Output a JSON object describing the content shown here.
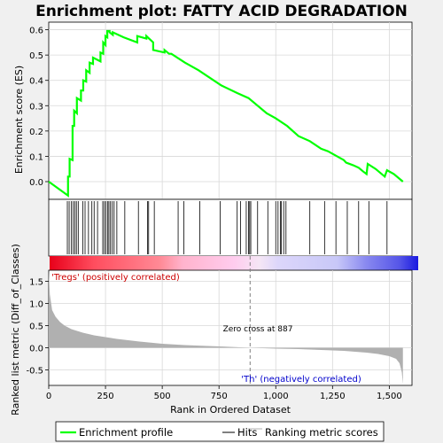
{
  "chart_data": {
    "type": "line",
    "title": "Enrichment plot: FATTY ACID DEGRADATION",
    "colors": {
      "es_line": "#00ff00",
      "hit": "#000000",
      "metric_fill": "#b0b0b0",
      "zero_cross": "#808080",
      "positive_label": "#cc0000",
      "negative_label": "#0000cc"
    },
    "es_panel": {
      "ylabel": "Enrichment score (ES)",
      "ylim": [
        -0.07,
        0.63
      ],
      "yticks": [
        0.0,
        0.1,
        0.2,
        0.3,
        0.4,
        0.5,
        0.6
      ],
      "ytick_labels": [
        "0.0",
        "0.1",
        "0.2",
        "0.3",
        "0.4",
        "0.5",
        "0.6"
      ],
      "grid": true,
      "x": [
        0,
        85,
        85,
        92,
        92,
        105,
        105,
        112,
        112,
        124,
        124,
        142,
        142,
        152,
        152,
        165,
        165,
        180,
        180,
        195,
        195,
        228,
        228,
        240,
        240,
        250,
        250,
        258,
        258,
        268,
        268,
        282,
        282,
        330,
        330,
        390,
        390,
        430,
        430,
        460,
        460,
        510,
        510,
        530,
        540,
        600,
        660,
        760,
        830,
        880,
        960,
        1000,
        1050,
        1100,
        1150,
        1200,
        1230,
        1270,
        1300,
        1310,
        1340,
        1365,
        1385,
        1400,
        1405,
        1440,
        1480,
        1490,
        1520,
        1560
      ],
      "es": [
        0.0,
        -0.055,
        0.02,
        0.02,
        0.09,
        0.085,
        0.22,
        0.22,
        0.28,
        0.27,
        0.33,
        0.32,
        0.36,
        0.36,
        0.4,
        0.395,
        0.44,
        0.43,
        0.47,
        0.465,
        0.49,
        0.475,
        0.51,
        0.505,
        0.55,
        0.54,
        0.575,
        0.57,
        0.595,
        0.595,
        0.59,
        0.58,
        0.59,
        0.57,
        0.57,
        0.55,
        0.575,
        0.565,
        0.575,
        0.55,
        0.52,
        0.51,
        0.52,
        0.505,
        0.505,
        0.47,
        0.44,
        0.38,
        0.35,
        0.33,
        0.27,
        0.25,
        0.22,
        0.18,
        0.16,
        0.13,
        0.12,
        0.1,
        0.085,
        0.075,
        0.065,
        0.055,
        0.04,
        0.03,
        0.07,
        0.05,
        0.02,
        0.045,
        0.03,
        0.0
      ]
    },
    "hits": [
      82,
      90,
      100,
      108,
      115,
      122,
      130,
      150,
      160,
      175,
      190,
      200,
      215,
      238,
      245,
      252,
      260,
      265,
      272,
      280,
      288,
      300,
      335,
      395,
      435,
      440,
      465,
      570,
      595,
      665,
      755,
      830,
      845,
      870,
      880,
      885,
      890,
      920,
      965,
      1000,
      1010,
      1020,
      1025,
      1035,
      1045,
      1150,
      1215,
      1265,
      1315,
      1365,
      1410,
      1490
    ],
    "ranking_panel": {
      "ylabel": "Ranked list metric (Diff_of_Classes)",
      "xlabel": "Rank in Ordered Dataset",
      "xlim": [
        0,
        1600
      ],
      "ylim": [
        -0.85,
        1.75
      ],
      "xticks": [
        0,
        250,
        500,
        750,
        1000,
        1250,
        1500
      ],
      "xtick_labels": [
        "0",
        "250",
        "500",
        "750",
        "1,000",
        "1,250",
        "1,500"
      ],
      "yticks": [
        -0.5,
        0.0,
        0.5,
        1.0,
        1.5
      ],
      "ytick_labels": [
        "-0.5",
        "0.0",
        "0.5",
        "1.0",
        "1.5"
      ],
      "grid": true,
      "zero_cross": 887,
      "zero_cross_label": "Zero cross at 887",
      "positive_label": "'Tregs' (positively correlated)",
      "negative_label": "'Th' (negatively correlated)",
      "metric_profile": {
        "rank": [
          0,
          5,
          15,
          30,
          50,
          70,
          100,
          150,
          200,
          300,
          400,
          500,
          600,
          700,
          800,
          887,
          1000,
          1100,
          1200,
          1300,
          1400,
          1450,
          1500,
          1530,
          1545,
          1555,
          1560
        ],
        "value": [
          1.75,
          1.2,
          0.85,
          0.7,
          0.58,
          0.5,
          0.42,
          0.34,
          0.28,
          0.2,
          0.14,
          0.09,
          0.06,
          0.04,
          0.02,
          0.0,
          -0.02,
          -0.03,
          -0.05,
          -0.07,
          -0.11,
          -0.14,
          -0.19,
          -0.25,
          -0.35,
          -0.55,
          -0.82
        ]
      }
    },
    "legend": {
      "placement": "bottom",
      "entries": [
        {
          "label": "Enrichment profile",
          "kind": "line",
          "color": "#00ff00"
        },
        {
          "label": "Hits",
          "kind": "line",
          "color": "#000000"
        },
        {
          "label": "Ranking metric scores",
          "kind": "line",
          "color": "#b0b0b0"
        }
      ]
    }
  }
}
